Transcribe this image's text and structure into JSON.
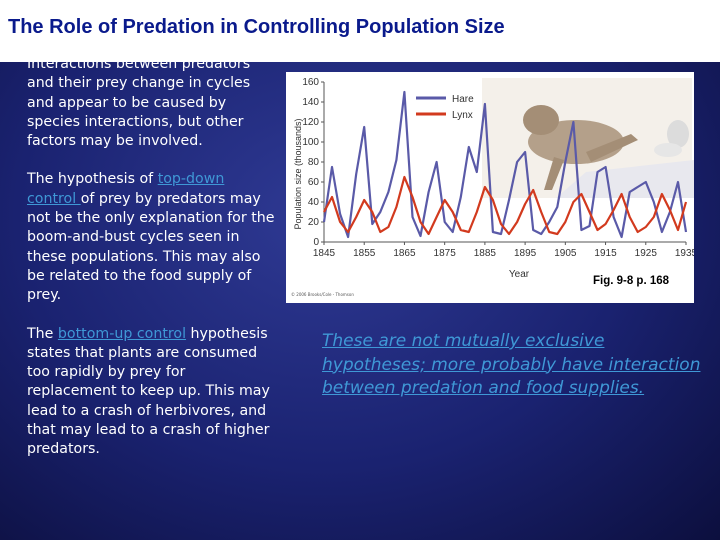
{
  "slide": {
    "title": "The Role of Predation in Controlling Population Size",
    "para1": "Interactions between predators and their prey change in cycles and appear to be caused by species interactions, but other factors may be involved.",
    "para2_prefix": "The hypothesis of ",
    "para2_link": "top-down control ",
    "para2_suffix": "of prey by predators may not be the only explanation for the boom-and-bust cycles seen in these populations. This may also be related to the food supply of prey.",
    "para3_prefix": "The ",
    "para3_link": "bottom-up control",
    "para3_suffix": " hypothesis states that plants are consumed too rapidly by prey for replacement to keep up. This may lead to a crash of herbivores, and that may lead to a crash of higher predators.",
    "figure_ref": "Fig. 9-8 p. 168",
    "credit": "© 2006 Brooks/Cole - Thomson",
    "conclusion": "These are not mutually exclusive hypotheses; more probably have interaction between predation and food supplies."
  },
  "colors": {
    "title_text": "#0a1a8c",
    "link": "#3f98d6",
    "hare": "#5a5aa8",
    "lynx": "#d23a1e"
  },
  "chart_data": {
    "type": "line",
    "title": "",
    "xlabel": "Year",
    "ylabel": "Population size (thousands)",
    "xlim": [
      1845,
      1935
    ],
    "ylim": [
      0,
      160
    ],
    "xticks": [
      1845,
      1855,
      1865,
      1875,
      1885,
      1895,
      1905,
      1915,
      1925,
      1935
    ],
    "yticks": [
      0,
      20,
      40,
      60,
      80,
      100,
      120,
      140,
      160
    ],
    "legend": "top-right",
    "series": [
      {
        "name": "Hare",
        "color": "#5a5aa8",
        "x": [
          1845,
          1847,
          1849,
          1851,
          1853,
          1855,
          1857,
          1859,
          1861,
          1863,
          1865,
          1867,
          1869,
          1871,
          1873,
          1875,
          1877,
          1879,
          1881,
          1883,
          1885,
          1887,
          1889,
          1891,
          1893,
          1895,
          1897,
          1899,
          1901,
          1903,
          1905,
          1907,
          1909,
          1911,
          1913,
          1915,
          1917,
          1919,
          1921,
          1923,
          1925,
          1927,
          1929,
          1931,
          1933,
          1935
        ],
        "values": [
          20,
          75,
          28,
          5,
          68,
          115,
          18,
          30,
          50,
          82,
          150,
          25,
          6,
          50,
          80,
          20,
          10,
          45,
          95,
          70,
          138,
          10,
          8,
          42,
          80,
          90,
          12,
          8,
          20,
          35,
          80,
          120,
          12,
          16,
          70,
          75,
          25,
          5,
          50,
          55,
          60,
          40,
          10,
          30,
          60,
          10
        ]
      },
      {
        "name": "Lynx",
        "color": "#d23a1e",
        "x": [
          1845,
          1847,
          1849,
          1851,
          1853,
          1855,
          1857,
          1859,
          1861,
          1863,
          1865,
          1867,
          1869,
          1871,
          1873,
          1875,
          1877,
          1879,
          1881,
          1883,
          1885,
          1887,
          1889,
          1891,
          1893,
          1895,
          1897,
          1899,
          1901,
          1903,
          1905,
          1907,
          1909,
          1911,
          1913,
          1915,
          1917,
          1919,
          1921,
          1923,
          1925,
          1927,
          1929,
          1931,
          1933,
          1935
        ],
        "values": [
          30,
          45,
          20,
          10,
          25,
          42,
          30,
          10,
          15,
          35,
          65,
          45,
          20,
          8,
          25,
          42,
          30,
          12,
          10,
          30,
          55,
          42,
          18,
          8,
          20,
          38,
          52,
          30,
          10,
          8,
          20,
          40,
          48,
          30,
          12,
          18,
          32,
          48,
          25,
          10,
          15,
          25,
          48,
          32,
          12,
          40
        ]
      }
    ]
  }
}
